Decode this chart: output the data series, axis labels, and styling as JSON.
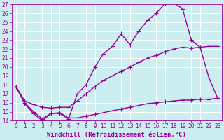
{
  "xlabel": "Windchill (Refroidissement éolien,°C)",
  "background_color": "#cceef0",
  "line_color": "#990099",
  "grid_color": "#ffffff",
  "xlim": [
    -0.5,
    23.5
  ],
  "ylim": [
    14,
    27
  ],
  "yticks": [
    14,
    15,
    16,
    17,
    18,
    19,
    20,
    21,
    22,
    23,
    24,
    25,
    26,
    27
  ],
  "xticks": [
    0,
    1,
    2,
    3,
    4,
    5,
    6,
    7,
    8,
    9,
    10,
    11,
    12,
    13,
    14,
    15,
    16,
    17,
    18,
    19,
    20,
    21,
    22,
    23
  ],
  "curve1_x": [
    0,
    1,
    2,
    3,
    4,
    5,
    6,
    7,
    8,
    9,
    10,
    11,
    12,
    13,
    14,
    15,
    16,
    17,
    18,
    19,
    20,
    21,
    22,
    23
  ],
  "curve1_y": [
    17.8,
    15.9,
    14.8,
    14.0,
    14.8,
    14.8,
    14.2,
    17.0,
    18.0,
    20.0,
    21.5,
    22.3,
    23.7,
    22.5,
    24.0,
    25.2,
    26.0,
    27.1,
    27.2,
    26.5,
    23.0,
    22.2,
    18.8,
    16.5
  ],
  "curve2_x": [
    0,
    1,
    2,
    3,
    4,
    5,
    6,
    7,
    8,
    9,
    10,
    11,
    12,
    13,
    14,
    15,
    16,
    17,
    18,
    19,
    20,
    21,
    22,
    23
  ],
  "curve2_y": [
    17.8,
    16.2,
    15.8,
    15.5,
    15.4,
    15.5,
    15.5,
    16.2,
    17.0,
    17.8,
    18.5,
    19.0,
    19.5,
    20.0,
    20.5,
    21.0,
    21.3,
    21.7,
    22.0,
    22.2,
    22.1,
    22.2,
    22.3,
    22.3
  ],
  "curve3_x": [
    0,
    1,
    2,
    3,
    4,
    5,
    6,
    7,
    8,
    9,
    10,
    11,
    12,
    13,
    14,
    15,
    16,
    17,
    18,
    19,
    20,
    21,
    22,
    23
  ],
  "curve3_y": [
    17.8,
    16.0,
    15.0,
    14.2,
    14.8,
    14.9,
    14.3,
    14.3,
    14.5,
    14.7,
    14.9,
    15.1,
    15.3,
    15.5,
    15.7,
    15.9,
    16.0,
    16.1,
    16.2,
    16.3,
    16.3,
    16.4,
    16.4,
    16.5
  ],
  "marker_size": 2.5,
  "linewidth": 1.0,
  "xlabel_fontsize": 6.5,
  "tick_fontsize": 5.5
}
